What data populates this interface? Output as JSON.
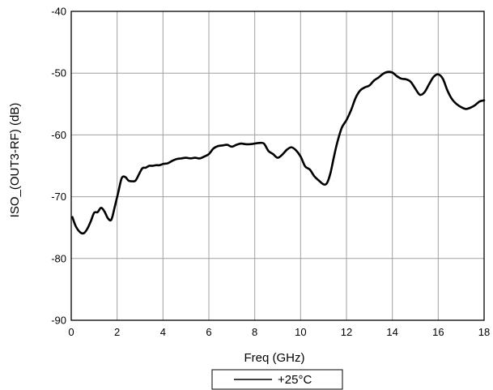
{
  "chart_data": {
    "type": "line",
    "xlabel": "Freq (GHz)",
    "ylabel": "ISO_(OUT3-RF) (dB)",
    "xlim": [
      0,
      18
    ],
    "ylim": [
      -90,
      -40
    ],
    "xticks": [
      0,
      2,
      4,
      6,
      8,
      10,
      12,
      14,
      16,
      18
    ],
    "yticks": [
      -90,
      -80,
      -70,
      -60,
      -50,
      -40
    ],
    "grid": true,
    "legend_position": "bottom-center",
    "line_color": "#000000",
    "series": [
      {
        "name": "+25°C",
        "x": [
          0.05,
          0.2,
          0.4,
          0.55,
          0.7,
          0.85,
          1.0,
          1.15,
          1.3,
          1.45,
          1.6,
          1.75,
          1.9,
          2.05,
          2.2,
          2.35,
          2.5,
          2.65,
          2.8,
          2.95,
          3.1,
          3.25,
          3.4,
          3.55,
          3.7,
          3.85,
          4.0,
          4.2,
          4.4,
          4.6,
          4.8,
          5.0,
          5.2,
          5.4,
          5.6,
          5.8,
          6.0,
          6.2,
          6.4,
          6.6,
          6.8,
          7.0,
          7.2,
          7.4,
          7.6,
          7.8,
          8.0,
          8.2,
          8.4,
          8.6,
          8.8,
          9.0,
          9.2,
          9.4,
          9.6,
          9.8,
          10.0,
          10.2,
          10.4,
          10.6,
          10.8,
          11.0,
          11.15,
          11.3,
          11.45,
          11.6,
          11.8,
          12.0,
          12.2,
          12.4,
          12.6,
          12.8,
          13.0,
          13.2,
          13.4,
          13.6,
          13.8,
          14.0,
          14.2,
          14.4,
          14.6,
          14.8,
          15.0,
          15.2,
          15.4,
          15.6,
          15.8,
          16.0,
          16.2,
          16.4,
          16.6,
          16.8,
          17.0,
          17.2,
          17.4,
          17.6,
          17.8,
          18.0
        ],
        "values": [
          -73.3,
          -74.8,
          -75.8,
          -75.9,
          -75.2,
          -74.0,
          -72.6,
          -72.5,
          -71.8,
          -72.4,
          -73.5,
          -73.7,
          -71.6,
          -69.3,
          -67.0,
          -66.8,
          -67.4,
          -67.5,
          -67.4,
          -66.4,
          -65.4,
          -65.3,
          -65.0,
          -65.0,
          -64.9,
          -64.9,
          -64.7,
          -64.6,
          -64.2,
          -63.9,
          -63.8,
          -63.7,
          -63.8,
          -63.7,
          -63.8,
          -63.5,
          -63.1,
          -62.2,
          -61.8,
          -61.7,
          -61.6,
          -61.9,
          -61.6,
          -61.4,
          -61.5,
          -61.5,
          -61.4,
          -61.3,
          -61.4,
          -62.6,
          -63.1,
          -63.7,
          -63.2,
          -62.4,
          -62.0,
          -62.5,
          -63.5,
          -65.1,
          -65.6,
          -66.7,
          -67.4,
          -68.0,
          -67.8,
          -66.2,
          -63.6,
          -61.2,
          -58.8,
          -57.6,
          -56.0,
          -54.0,
          -52.8,
          -52.3,
          -52.0,
          -51.2,
          -50.7,
          -50.1,
          -49.8,
          -49.9,
          -50.5,
          -50.9,
          -51.0,
          -51.4,
          -52.5,
          -53.5,
          -53.1,
          -51.8,
          -50.6,
          -50.2,
          -50.9,
          -52.8,
          -54.2,
          -55.0,
          -55.5,
          -55.8,
          -55.6,
          -55.2,
          -54.6,
          -54.4
        ]
      }
    ]
  }
}
